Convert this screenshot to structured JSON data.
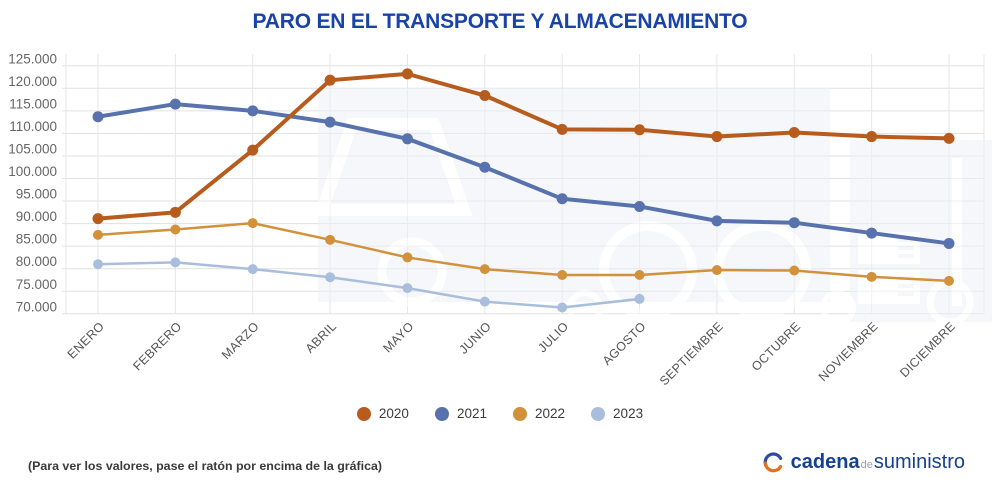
{
  "title": "PARO EN EL TRANSPORTE Y ALMACENAMIENTO",
  "footer": {
    "note": "(Para ver los valores, pase el ratón por encima de la gráfica)",
    "logo": {
      "word1": "cadena",
      "word2": "de",
      "word3": "suministro"
    }
  },
  "colors": {
    "title": "#1a43a8",
    "grid_horizontal": "#e1e1e1",
    "grid_vertical": "#e6e6e6",
    "axis_text": "#666666",
    "month_text": "#555555",
    "watermark": "#eef1f8",
    "logo_blue": "#16418f",
    "logo_orange": "#e2711d"
  },
  "chart_data": {
    "type": "line",
    "title": "PARO EN EL TRANSPORTE Y ALMACENAMIENTO",
    "categories": [
      "ENERO",
      "FEBRERO",
      "MARZO",
      "ABRIL",
      "MAYO",
      "JUNIO",
      "JULIO",
      "AGOSTO",
      "SEPTIEMBRE",
      "OCTUBRE",
      "NOVIEMBRE",
      "DICIEMBRE"
    ],
    "xlabel": "",
    "ylabel": "",
    "grid": true,
    "legend_position": "bottom",
    "y_axis": {
      "min": 70000,
      "max": 125000,
      "step": 5000,
      "tick_labels": [
        "125.000",
        "120.000",
        "115.000",
        "110.000",
        "105.000",
        "100.000",
        "95.000",
        "90.000",
        "85.000",
        "80.000",
        "75.000",
        "70.000"
      ]
    },
    "series": [
      {
        "name": "2021",
        "color": "#5872ad",
        "line_width": 4,
        "values": [
          113700,
          116500,
          115000,
          112500,
          108800,
          102500,
          95500,
          93800,
          90600,
          90200,
          87900,
          85600
        ]
      },
      {
        "name": "2020",
        "color": "#b85c1d",
        "line_width": 4,
        "values": [
          91100,
          92500,
          106300,
          121800,
          123200,
          118400,
          110900,
          110800,
          109300,
          110200,
          109300,
          108900
        ]
      },
      {
        "name": "2022",
        "color": "#d2923c",
        "line_width": 2.5,
        "values": [
          87500,
          88700,
          90100,
          86400,
          82500,
          79900,
          78600,
          78600,
          79700,
          79600,
          78200,
          77300
        ]
      },
      {
        "name": "2023",
        "color": "#a9bedd",
        "line_width": 2.5,
        "values": [
          81000,
          81400,
          79900,
          78100,
          75700,
          72700,
          71400,
          73300
        ]
      }
    ],
    "legend_order": [
      "2020",
      "2021",
      "2022",
      "2023"
    ]
  }
}
